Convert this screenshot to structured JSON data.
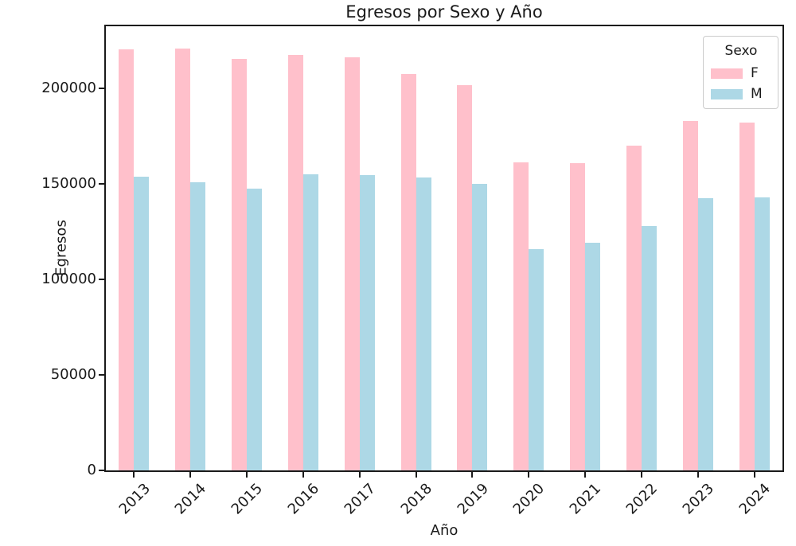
{
  "figure": {
    "title": "Egresos por Sexo y Año"
  },
  "chart_data": {
    "type": "bar",
    "title": "Egresos por Sexo y Año",
    "xlabel": "Año",
    "ylabel": "Egresos",
    "categories": [
      "2013",
      "2014",
      "2015",
      "2016",
      "2017",
      "2018",
      "2019",
      "2020",
      "2021",
      "2022",
      "2023",
      "2024"
    ],
    "series": [
      {
        "name": "F",
        "color": "#ffc0cb",
        "values": [
          220400,
          220800,
          215600,
          217700,
          216200,
          207500,
          201600,
          161200,
          160800,
          170000,
          182900,
          182100
        ]
      },
      {
        "name": "M",
        "color": "#add8e6",
        "values": [
          153800,
          150800,
          147500,
          155000,
          154600,
          153300,
          150000,
          115800,
          119200,
          127900,
          142500,
          142900
        ]
      }
    ],
    "ylim": [
      0,
      232500
    ],
    "yticks": {
      "values": [
        0,
        50000,
        100000,
        150000,
        200000
      ],
      "labels": [
        "0",
        "50000",
        "100000",
        "150000",
        "200000"
      ]
    },
    "grid": false,
    "legend": {
      "title": "Sexo",
      "position": "upper-right",
      "entries": [
        "F",
        "M"
      ]
    },
    "colors": {
      "axis": "#1a1a1a",
      "background": "#ffffff",
      "legend_border": "#cccccc"
    }
  }
}
